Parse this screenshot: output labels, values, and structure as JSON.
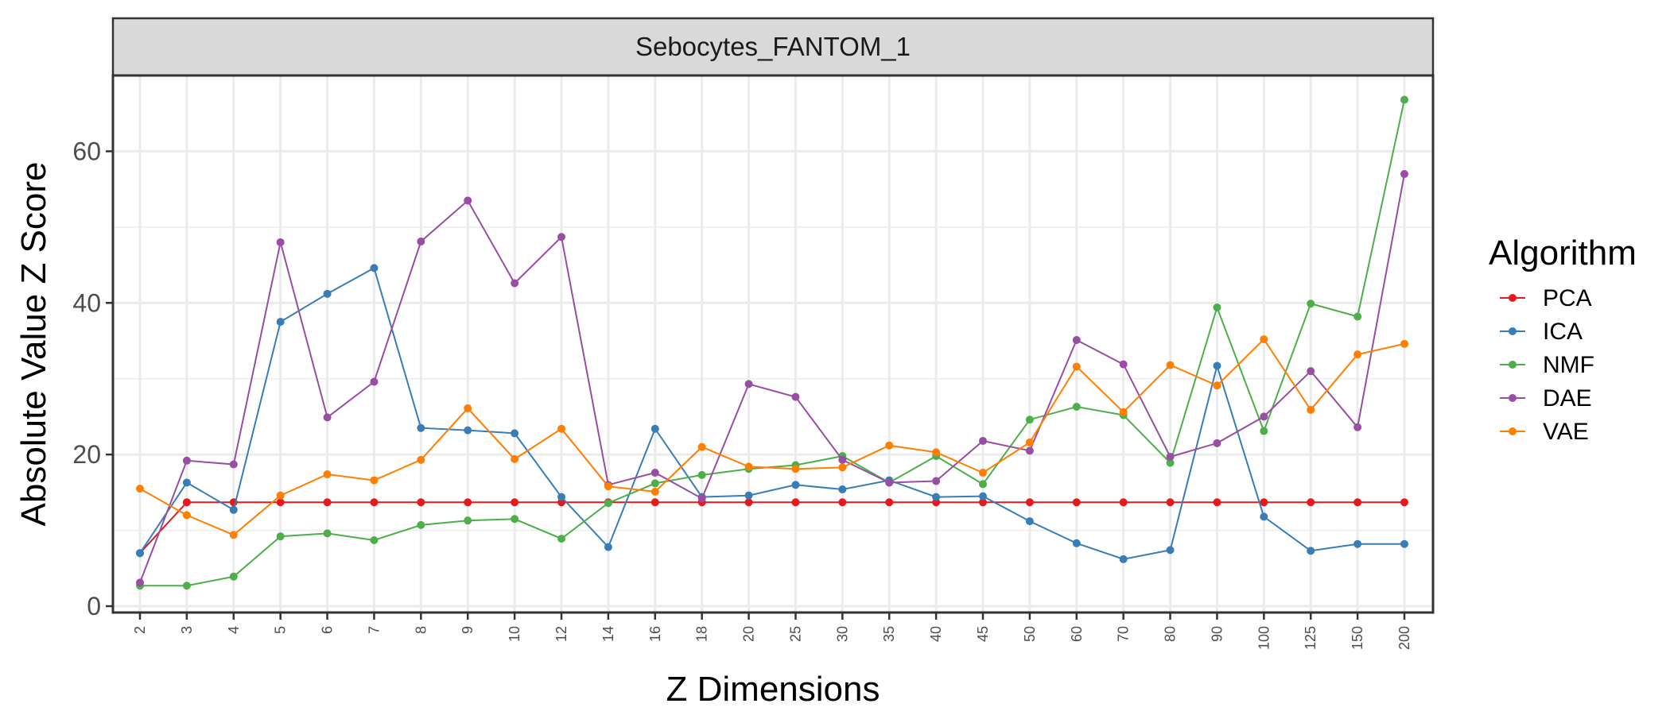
{
  "chart_data": {
    "type": "line",
    "panel_title": "Sebocytes_FANTOM_1",
    "xlabel": "Z Dimensions",
    "ylabel": "Absolute Value Z Score",
    "ylim": [
      0,
      70
    ],
    "yticks": [
      0,
      20,
      40,
      60
    ],
    "grid": true,
    "legend_title": "Algorithm",
    "legend_position": "right",
    "categories": [
      "2",
      "3",
      "4",
      "5",
      "6",
      "7",
      "8",
      "9",
      "10",
      "12",
      "14",
      "16",
      "18",
      "20",
      "25",
      "30",
      "35",
      "40",
      "45",
      "50",
      "60",
      "70",
      "80",
      "90",
      "100",
      "125",
      "150",
      "200"
    ],
    "series": [
      {
        "name": "PCA",
        "color": "#E41A1C",
        "values": [
          7.0,
          13.7,
          13.7,
          13.7,
          13.7,
          13.7,
          13.7,
          13.7,
          13.7,
          13.7,
          13.7,
          13.7,
          13.7,
          13.7,
          13.7,
          13.7,
          13.7,
          13.7,
          13.7,
          13.7,
          13.7,
          13.7,
          13.7,
          13.7,
          13.7,
          13.7,
          13.7,
          13.7
        ]
      },
      {
        "name": "ICA",
        "color": "#377EB8",
        "values": [
          7.0,
          16.3,
          12.7,
          37.5,
          41.2,
          44.6,
          23.5,
          23.2,
          22.8,
          14.4,
          7.8,
          23.4,
          14.4,
          14.6,
          16.0,
          15.4,
          16.6,
          14.4,
          14.5,
          11.2,
          8.3,
          6.2,
          7.4,
          31.7,
          11.8,
          7.3,
          8.2,
          8.2
        ]
      },
      {
        "name": "NMF",
        "color": "#4DAF4A",
        "values": [
          2.7,
          2.7,
          3.9,
          9.2,
          9.6,
          8.7,
          10.7,
          11.3,
          11.5,
          8.9,
          13.6,
          16.2,
          17.3,
          18.1,
          18.6,
          19.8,
          16.3,
          19.8,
          16.1,
          24.6,
          26.3,
          25.2,
          18.9,
          39.4,
          23.1,
          39.9,
          38.2,
          66.8
        ]
      },
      {
        "name": "DAE",
        "color": "#984EA3",
        "values": [
          3.1,
          19.2,
          18.7,
          48.0,
          24.9,
          29.6,
          48.1,
          53.5,
          42.6,
          48.7,
          16.0,
          17.6,
          14.2,
          29.3,
          27.6,
          19.3,
          16.3,
          16.5,
          21.8,
          20.5,
          35.1,
          31.9,
          19.7,
          21.5,
          25.0,
          31.0,
          23.6,
          57.0
        ]
      },
      {
        "name": "VAE",
        "color": "#FF7F00",
        "values": [
          15.5,
          12.0,
          9.4,
          14.6,
          17.4,
          16.6,
          19.3,
          26.1,
          19.4,
          23.4,
          15.8,
          15.1,
          21.0,
          18.4,
          18.1,
          18.3,
          21.2,
          20.3,
          17.6,
          21.6,
          31.6,
          25.6,
          31.8,
          29.1,
          35.2,
          25.9,
          33.2,
          34.6
        ]
      }
    ]
  }
}
